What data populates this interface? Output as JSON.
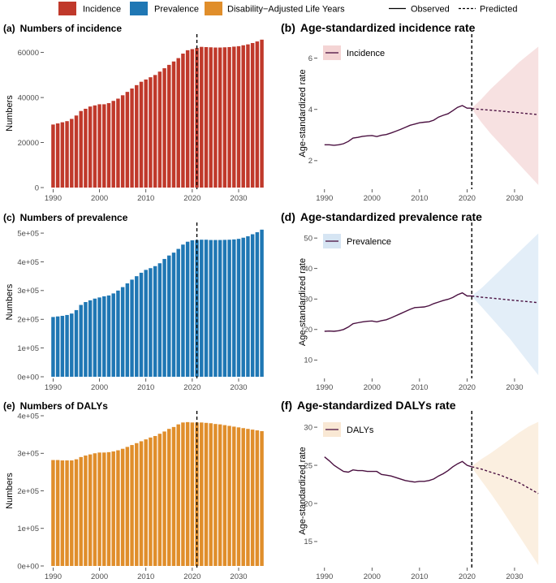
{
  "legend": {
    "fills": [
      {
        "label": "Incidence",
        "color": "#c0392b"
      },
      {
        "label": "Prevalence",
        "color": "#1f77b4"
      },
      {
        "label": "Disability−Adjusted Life Years",
        "color": "#e08e2b"
      }
    ],
    "lines": [
      {
        "label": "Observed",
        "style": "solid"
      },
      {
        "label": "Predicted",
        "style": "dashed"
      }
    ]
  },
  "colors": {
    "incidence": "#c0392b",
    "prevalence": "#1f77b4",
    "dalys": "#e08e2b",
    "line": "#4a1040"
  },
  "chart_data": [
    {
      "id": "a",
      "type": "bar",
      "tag": "(a)",
      "title": "Numbers of incidence",
      "ylabel": "Numbers",
      "xlabel": "",
      "color": "#c0392b",
      "x": [
        1990,
        1991,
        1992,
        1993,
        1994,
        1995,
        1996,
        1997,
        1998,
        1999,
        2000,
        2001,
        2002,
        2003,
        2004,
        2005,
        2006,
        2007,
        2008,
        2009,
        2010,
        2011,
        2012,
        2013,
        2014,
        2015,
        2016,
        2017,
        2018,
        2019,
        2020,
        2021,
        2022,
        2023,
        2024,
        2025,
        2026,
        2027,
        2028,
        2029,
        2030,
        2031,
        2032,
        2033,
        2034,
        2035
      ],
      "values": [
        28000,
        28500,
        29000,
        29500,
        30500,
        32000,
        34000,
        35000,
        36000,
        36500,
        37000,
        37000,
        37500,
        38500,
        39500,
        41000,
        42500,
        44000,
        45500,
        47000,
        48000,
        49000,
        50000,
        51500,
        53000,
        54500,
        56000,
        57500,
        59500,
        61000,
        61500,
        62000,
        62500,
        62400,
        62300,
        62200,
        62200,
        62300,
        62400,
        62600,
        62800,
        63200,
        63600,
        64200,
        64900,
        65700
      ],
      "ylim": [
        0,
        66000
      ],
      "yticks": [
        0,
        20000,
        40000,
        60000
      ],
      "ytick_labels": [
        "0",
        "20000",
        "40000",
        "60000"
      ],
      "xticks": [
        1990,
        2000,
        2010,
        2020,
        2030
      ],
      "xtick_labels": [
        "1990",
        "2000",
        "2010",
        "2020",
        "2030"
      ],
      "vline": 2021
    },
    {
      "id": "b",
      "type": "line",
      "tag": "(b)",
      "title": "Age-standardized incidence rate",
      "ylabel": "Age-standardized rate",
      "legend": "Incidence",
      "fill": "#f7e1e1",
      "legend_fill": "#f4d4d4",
      "x_obs": [
        1990,
        1991,
        1992,
        1993,
        1994,
        1995,
        1996,
        1997,
        1998,
        1999,
        2000,
        2001,
        2002,
        2003,
        2004,
        2005,
        2006,
        2007,
        2008,
        2009,
        2010,
        2011,
        2012,
        2013,
        2014,
        2015,
        2016,
        2017,
        2018,
        2019,
        2020,
        2021
      ],
      "y_obs": [
        2.62,
        2.62,
        2.6,
        2.62,
        2.66,
        2.75,
        2.88,
        2.91,
        2.95,
        2.97,
        2.98,
        2.94,
        2.99,
        3.02,
        3.08,
        3.15,
        3.22,
        3.3,
        3.38,
        3.43,
        3.48,
        3.5,
        3.52,
        3.58,
        3.7,
        3.77,
        3.83,
        3.95,
        4.08,
        4.15,
        4.05,
        4.05
      ],
      "x_pred": [
        2021,
        2023,
        2025,
        2027,
        2029,
        2031,
        2033,
        2035
      ],
      "y_pred": [
        4.03,
        4.0,
        3.97,
        3.94,
        3.9,
        3.87,
        3.83,
        3.8
      ],
      "y_upper": [
        4.05,
        4.4,
        4.8,
        5.15,
        5.5,
        5.85,
        6.15,
        6.45
      ],
      "y_lower": [
        4.02,
        3.5,
        3.05,
        2.65,
        2.25,
        1.85,
        1.45,
        1.05
      ],
      "ylim": [
        0.95,
        6.75
      ],
      "yticks": [
        2,
        4,
        6
      ],
      "ytick_labels": [
        "2",
        "4",
        "6"
      ],
      "xlim": [
        1988.5,
        2036.5
      ],
      "xticks": [
        1990,
        2000,
        2010,
        2020,
        2030
      ],
      "xtick_labels": [
        "1990",
        "2000",
        "2010",
        "2020",
        "2030"
      ],
      "vline": 2021
    },
    {
      "id": "c",
      "type": "bar",
      "tag": "(c)",
      "title": "Numbers of prevalence",
      "ylabel": "Numbers",
      "xlabel": "",
      "color": "#1f77b4",
      "x": [
        1990,
        1991,
        1992,
        1993,
        1994,
        1995,
        1996,
        1997,
        1998,
        1999,
        2000,
        2001,
        2002,
        2003,
        2004,
        2005,
        2006,
        2007,
        2008,
        2009,
        2010,
        2011,
        2012,
        2013,
        2014,
        2015,
        2016,
        2017,
        2018,
        2019,
        2020,
        2021,
        2022,
        2023,
        2024,
        2025,
        2026,
        2027,
        2028,
        2029,
        2030,
        2031,
        2032,
        2033,
        2034,
        2035
      ],
      "values": [
        208000,
        210000,
        212000,
        215000,
        220000,
        232000,
        250000,
        260000,
        266000,
        272000,
        276000,
        280000,
        283000,
        290000,
        300000,
        312000,
        325000,
        338000,
        350000,
        362000,
        372000,
        378000,
        385000,
        395000,
        410000,
        422000,
        432000,
        445000,
        460000,
        470000,
        475000,
        476000,
        477000,
        477000,
        476000,
        476000,
        476000,
        476500,
        477000,
        478000,
        480000,
        484000,
        489000,
        496000,
        503000,
        512000
      ],
      "ylim": [
        0,
        520000
      ],
      "yticks": [
        0,
        100000,
        200000,
        300000,
        400000,
        500000
      ],
      "ytick_labels": [
        "0e+00",
        "1e+05",
        "2e+05",
        "3e+05",
        "4e+05",
        "5e+05"
      ],
      "xticks": [
        1990,
        2000,
        2010,
        2020,
        2030
      ],
      "xtick_labels": [
        "1990",
        "2000",
        "2010",
        "2020",
        "2030"
      ],
      "vline": 2021
    },
    {
      "id": "d",
      "type": "line",
      "tag": "(d)",
      "title": "Age-standardized prevalence rate",
      "ylabel": "Age-standardized rate",
      "legend": "Prevalence",
      "fill": "#e3eef8",
      "legend_fill": "#d6e5f3",
      "x_obs": [
        1990,
        1991,
        1992,
        1993,
        1994,
        1995,
        1996,
        1997,
        1998,
        1999,
        2000,
        2001,
        2002,
        2003,
        2004,
        2005,
        2006,
        2007,
        2008,
        2009,
        2010,
        2011,
        2012,
        2013,
        2014,
        2015,
        2016,
        2017,
        2018,
        2019,
        2020,
        2021
      ],
      "y_obs": [
        19.4,
        19.5,
        19.4,
        19.6,
        20.0,
        20.8,
        21.9,
        22.2,
        22.5,
        22.7,
        22.8,
        22.5,
        22.9,
        23.2,
        23.8,
        24.5,
        25.2,
        25.9,
        26.6,
        27.2,
        27.3,
        27.4,
        27.8,
        28.5,
        29.0,
        29.5,
        29.9,
        30.5,
        31.4,
        32.0,
        31.0,
        31.0
      ],
      "x_pred": [
        2021,
        2023,
        2025,
        2027,
        2029,
        2031,
        2033,
        2035
      ],
      "y_pred": [
        31.0,
        30.6,
        30.3,
        30.0,
        29.7,
        29.4,
        29.1,
        28.8
      ],
      "y_upper": [
        31.1,
        33.5,
        36.5,
        39.5,
        42.5,
        45.5,
        48.5,
        51.5
      ],
      "y_lower": [
        30.9,
        27.5,
        24.0,
        20.5,
        17.0,
        13.0,
        9.0,
        5.0
      ],
      "ylim": [
        4.5,
        53.5
      ],
      "yticks": [
        10,
        20,
        30,
        40,
        50
      ],
      "ytick_labels": [
        "10",
        "20",
        "30",
        "40",
        "50"
      ],
      "xlim": [
        1988.5,
        2036.5
      ],
      "xticks": [
        1990,
        2000,
        2010,
        2020,
        2030
      ],
      "xtick_labels": [
        "1990",
        "2000",
        "2010",
        "2020",
        "2030"
      ],
      "vline": 2021
    },
    {
      "id": "e",
      "type": "bar",
      "tag": "(e)",
      "title": "Numbers of DALYs",
      "ylabel": "Numbers",
      "xlabel": "",
      "color": "#e08e2b",
      "x": [
        1990,
        1991,
        1992,
        1993,
        1994,
        1995,
        1996,
        1997,
        1998,
        1999,
        2000,
        2001,
        2002,
        2003,
        2004,
        2005,
        2006,
        2007,
        2008,
        2009,
        2010,
        2011,
        2012,
        2013,
        2014,
        2015,
        2016,
        2017,
        2018,
        2019,
        2020,
        2021,
        2022,
        2023,
        2024,
        2025,
        2026,
        2027,
        2028,
        2029,
        2030,
        2031,
        2032,
        2033,
        2034,
        2035
      ],
      "values": [
        282000,
        282000,
        281000,
        281000,
        281000,
        284000,
        290000,
        294000,
        297000,
        300000,
        302000,
        302000,
        303000,
        305000,
        308000,
        312000,
        317000,
        322000,
        327000,
        332000,
        337000,
        342000,
        346000,
        352000,
        358000,
        365000,
        370000,
        377000,
        382000,
        383000,
        382000,
        382000,
        382000,
        381000,
        380000,
        378000,
        377000,
        375000,
        373000,
        371000,
        369000,
        367000,
        365000,
        363000,
        361000,
        359000
      ],
      "ylim": [
        0,
        400000
      ],
      "yticks": [
        0,
        100000,
        200000,
        300000,
        400000
      ],
      "ytick_labels": [
        "0e+00",
        "1e+05",
        "2e+05",
        "3e+05",
        "4e+05"
      ],
      "xticks": [
        1990,
        2000,
        2010,
        2020,
        2030
      ],
      "xtick_labels": [
        "1990",
        "2000",
        "2010",
        "2020",
        "2030"
      ],
      "vline": 2021
    },
    {
      "id": "f",
      "type": "line",
      "tag": "(f)",
      "title": "Age-standardized DALYs rate",
      "ylabel": "Age-standardized rate",
      "legend": "DALYs",
      "fill": "#fbefe0",
      "legend_fill": "#f9e8d4",
      "x_obs": [
        1990,
        1991,
        1992,
        1993,
        1994,
        1995,
        1996,
        1997,
        1998,
        1999,
        2000,
        2001,
        2002,
        2003,
        2004,
        2005,
        2006,
        2007,
        2008,
        2009,
        2010,
        2011,
        2012,
        2013,
        2014,
        2015,
        2016,
        2017,
        2018,
        2019,
        2020,
        2021
      ],
      "y_obs": [
        26.1,
        25.6,
        25.0,
        24.6,
        24.2,
        24.1,
        24.4,
        24.3,
        24.3,
        24.2,
        24.2,
        24.2,
        23.8,
        23.7,
        23.6,
        23.4,
        23.2,
        23.0,
        22.9,
        22.8,
        22.9,
        22.9,
        23.0,
        23.2,
        23.6,
        23.9,
        24.3,
        24.8,
        25.2,
        25.5,
        25.0,
        24.8
      ],
      "x_pred": [
        2021,
        2023,
        2025,
        2027,
        2029,
        2031,
        2033,
        2035
      ],
      "y_pred": [
        24.8,
        24.5,
        24.1,
        23.7,
        23.2,
        22.7,
        22.0,
        21.3
      ],
      "y_upper": [
        24.9,
        25.8,
        26.6,
        27.5,
        28.4,
        29.3,
        30.1,
        30.7
      ],
      "y_lower": [
        24.7,
        23.0,
        21.3,
        19.5,
        17.6,
        15.7,
        13.8,
        11.9
      ],
      "ylim": [
        11.8,
        31.5
      ],
      "yticks": [
        15,
        20,
        25,
        30
      ],
      "ytick_labels": [
        "15",
        "20",
        "25",
        "30"
      ],
      "xlim": [
        1988.5,
        2036.5
      ],
      "xticks": [
        1990,
        2000,
        2010,
        2020,
        2030
      ],
      "xtick_labels": [
        "1990",
        "2000",
        "2010",
        "2020",
        "2030"
      ],
      "vline": 2021
    }
  ]
}
